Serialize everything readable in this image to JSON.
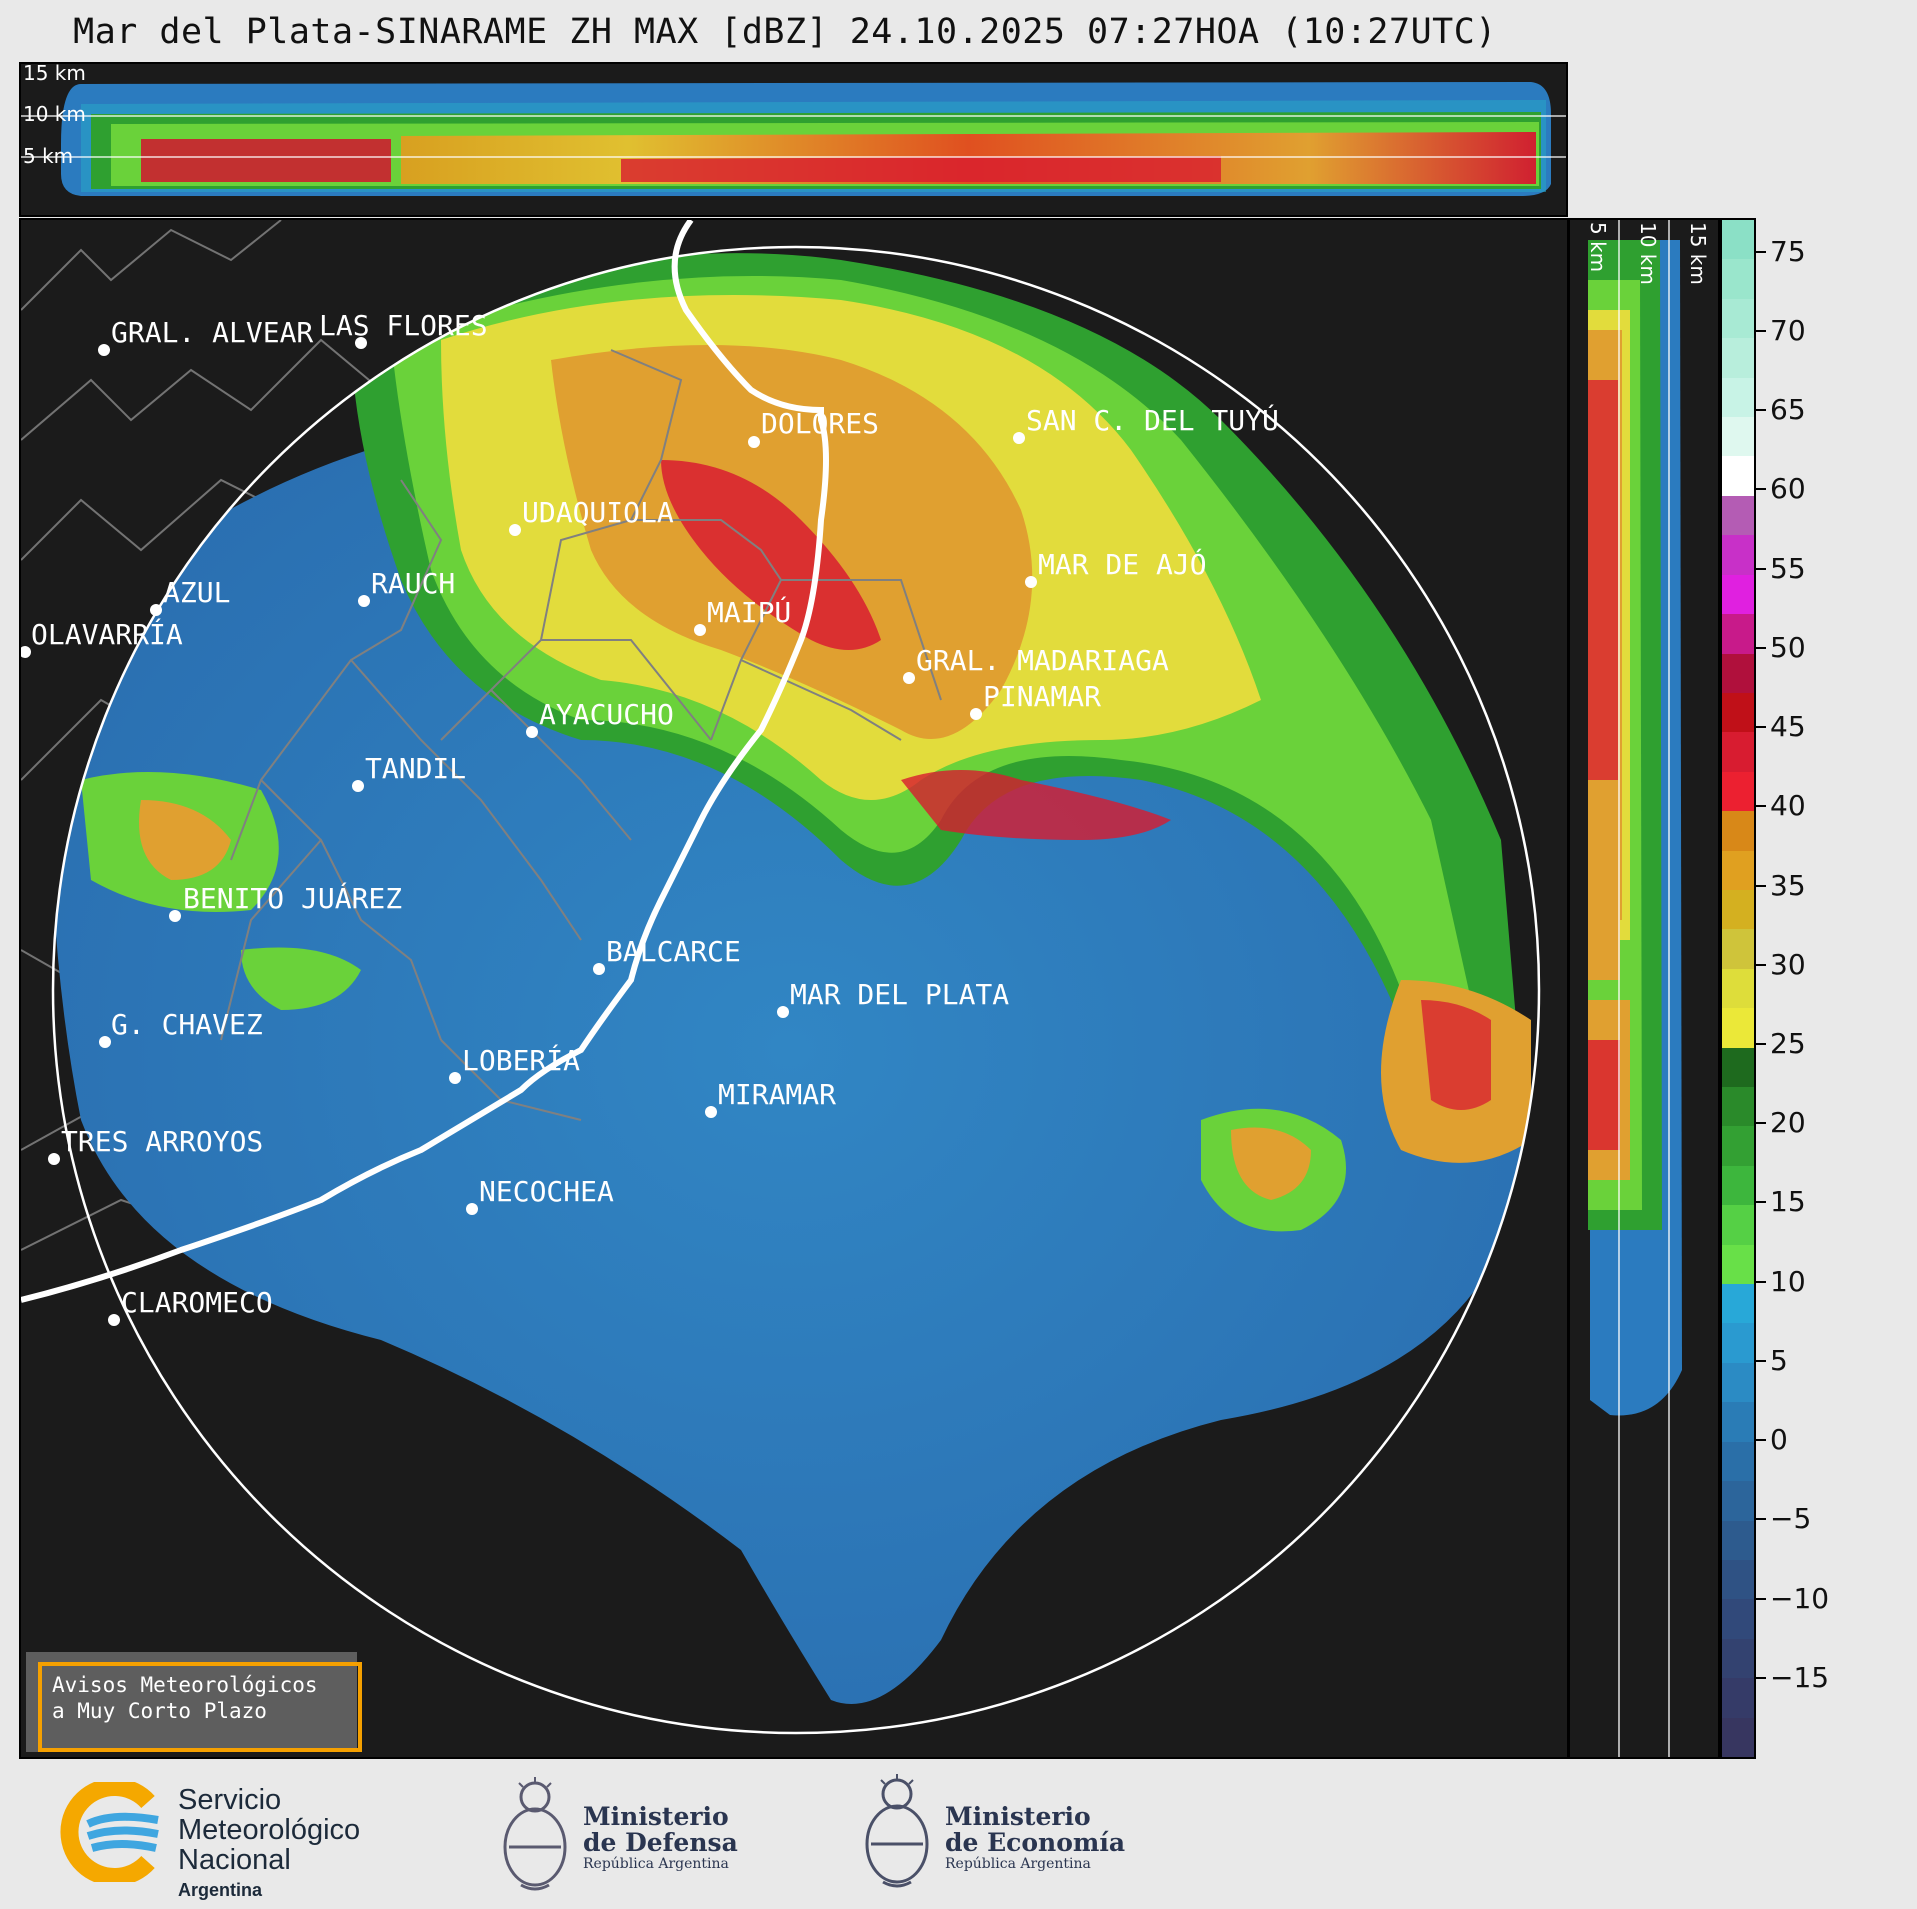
{
  "title": "Mar del Plata-SINARAME ZH MAX [dBZ] 24.10.2025 07:27HOA (10:27UTC)",
  "altitude_labels_top": [
    "15 km",
    "10 km",
    "5 km"
  ],
  "altitude_labels_right": [
    "5 km",
    "10 km",
    "15 km"
  ],
  "cities": [
    {
      "name": "GRAL. ALVEAR"
    },
    {
      "name": "LAS FLORES"
    },
    {
      "name": "DOLORES"
    },
    {
      "name": "SAN C. DEL TUYÚ"
    },
    {
      "name": "UDAQUIOLA"
    },
    {
      "name": "MAR DE AJÓ"
    },
    {
      "name": "AZUL"
    },
    {
      "name": "RAUCH"
    },
    {
      "name": "OLAVARRÍA"
    },
    {
      "name": "MAIPÚ"
    },
    {
      "name": "GRAL. MADARIAGA"
    },
    {
      "name": "AYACUCHO"
    },
    {
      "name": "PINAMAR"
    },
    {
      "name": "TANDIL"
    },
    {
      "name": "BENITO JUÁREZ"
    },
    {
      "name": "BALCARCE"
    },
    {
      "name": "MAR DEL PLATA"
    },
    {
      "name": "G. CHAVEZ"
    },
    {
      "name": "LOBERÍA"
    },
    {
      "name": "MIRAMAR"
    },
    {
      "name": "TRES ARROYOS"
    },
    {
      "name": "NECOCHEA"
    },
    {
      "name": "CLAROMECO"
    }
  ],
  "colorbar": {
    "unit": "dBZ",
    "tick_labels": [
      "75",
      "70",
      "65",
      "60",
      "55",
      "50",
      "45",
      "40",
      "35",
      "30",
      "25",
      "20",
      "15",
      "10",
      "5",
      "0",
      "−5",
      "−10",
      "−15"
    ],
    "range": [
      -20,
      77
    ]
  },
  "badge": {
    "line1": "Avisos Meteorológicos",
    "line2": "a Muy Corto Plazo"
  },
  "logos": {
    "smn": {
      "line1": "Servicio",
      "line2": "Meteorológico",
      "line3": "Nacional",
      "line4": "Argentina"
    },
    "defensa": {
      "line1": "Ministerio",
      "line2": "de Defensa",
      "line3": "República Argentina"
    },
    "economia": {
      "line1": "Ministerio",
      "line2": "de Economía",
      "line3": "República Argentina"
    }
  },
  "colors": {
    "background": "#e9e9e9",
    "panel": "#1b1b1b",
    "badge_border": "#f5a000",
    "ring": "#ffffff"
  }
}
